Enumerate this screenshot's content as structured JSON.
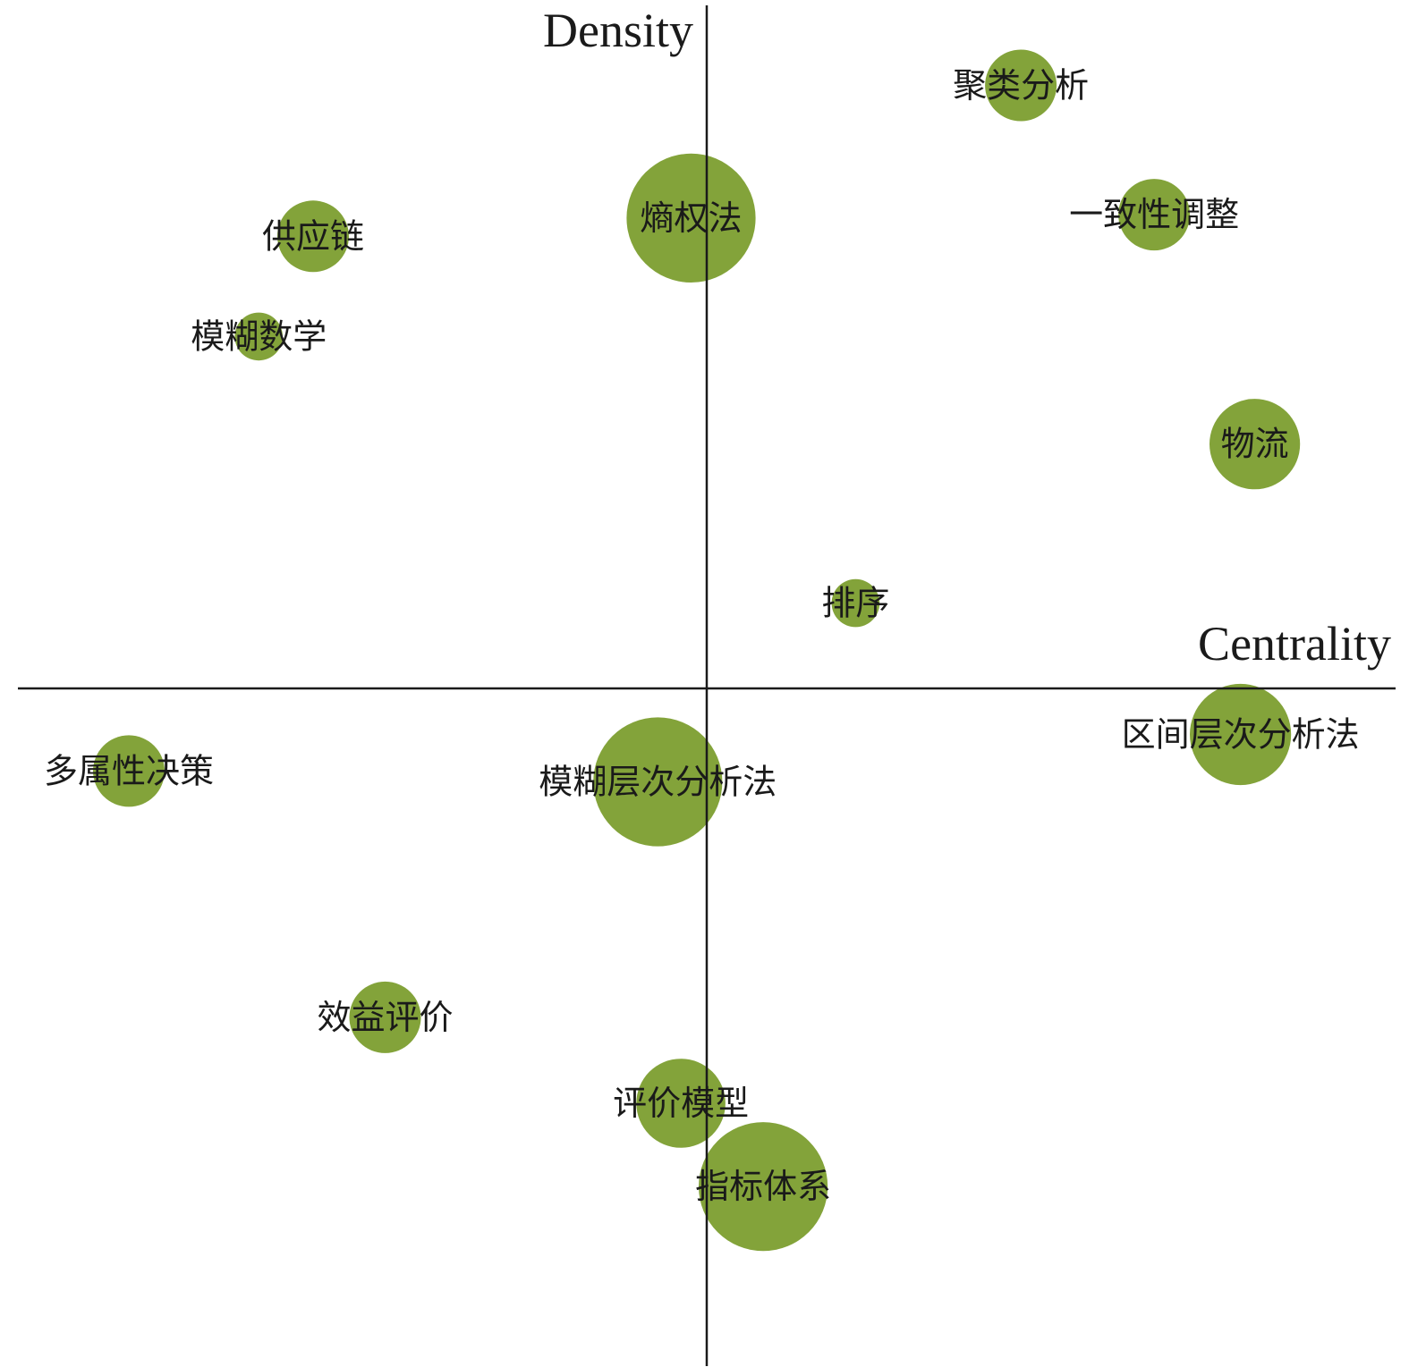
{
  "chart_data": {
    "type": "scatter",
    "title": "",
    "xlabel": "Centrality",
    "ylabel": "Density",
    "xlim": [
      -1,
      1
    ],
    "ylim": [
      -1,
      1
    ],
    "grid": false,
    "legend": "none",
    "bubble_color": "#83a33a",
    "points": [
      {
        "label": "聚类分析",
        "x": 0.462,
        "y": 0.891,
        "size": 1.0
      },
      {
        "label": "熵权法",
        "x": -0.023,
        "y": 0.695,
        "size": 3.25
      },
      {
        "label": "一致性调整",
        "x": 0.658,
        "y": 0.7,
        "size": 1.0
      },
      {
        "label": "供应链",
        "x": -0.579,
        "y": 0.668,
        "size": 1.0
      },
      {
        "label": "模糊数学",
        "x": -0.659,
        "y": 0.52,
        "size": 0.45
      },
      {
        "label": "物流",
        "x": 0.806,
        "y": 0.361,
        "size": 1.6
      },
      {
        "label": "排序",
        "x": 0.219,
        "y": 0.126,
        "size": 0.45
      },
      {
        "label": "区间层次分析法",
        "x": 0.785,
        "y": -0.068,
        "size": 2.0
      },
      {
        "label": "多属性决策",
        "x": -0.85,
        "y": -0.122,
        "size": 1.0
      },
      {
        "label": "模糊层次分析法",
        "x": -0.072,
        "y": -0.138,
        "size": 3.25
      },
      {
        "label": "效益评价",
        "x": -0.473,
        "y": -0.486,
        "size": 1.0
      },
      {
        "label": "评价模型",
        "x": -0.038,
        "y": -0.613,
        "size": 1.55
      },
      {
        "label": "指标体系",
        "x": 0.083,
        "y": -0.736,
        "size": 3.25
      }
    ]
  }
}
